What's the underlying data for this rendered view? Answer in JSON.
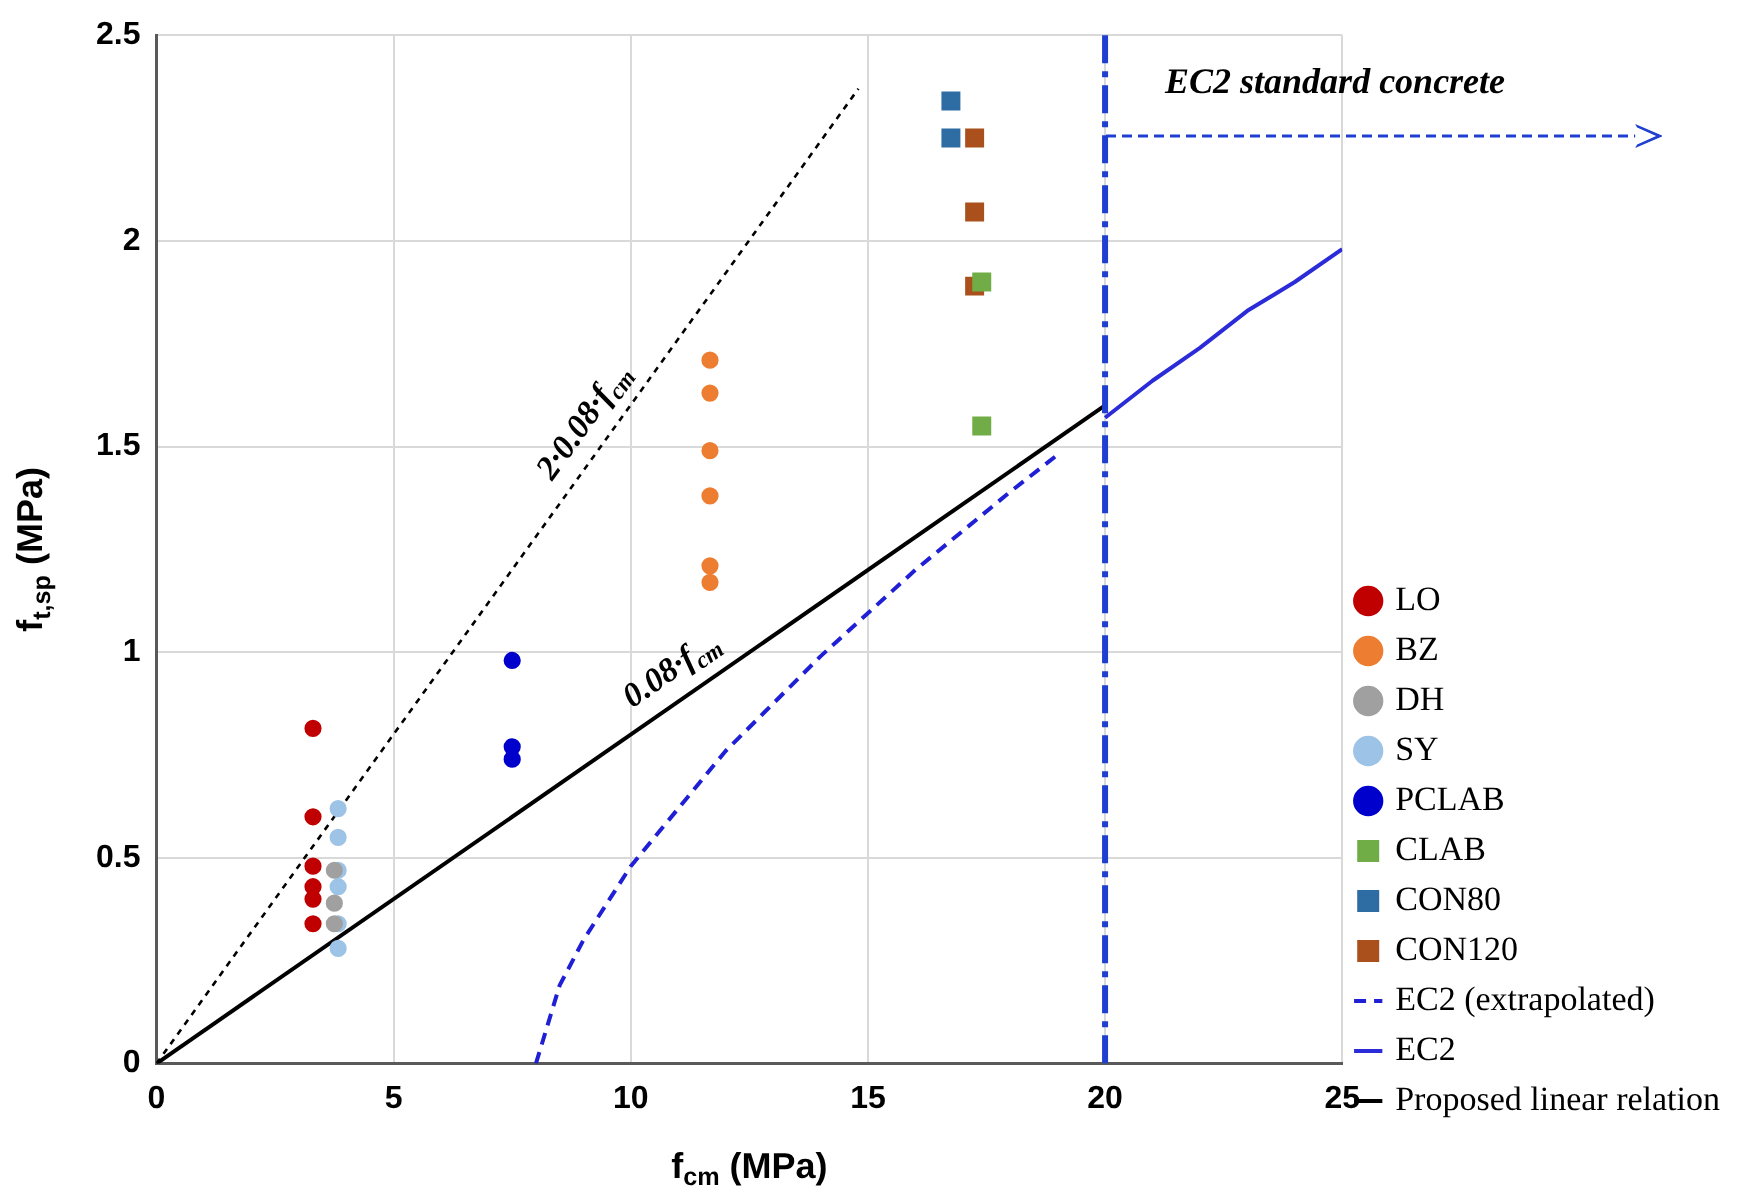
{
  "chart_data": {
    "type": "scatter",
    "xlabel": "f$_{cm}$ (MPa)",
    "ylabel": "f$_{t,sp}$ (MPa)",
    "xlim": [
      0,
      25
    ],
    "xticks": [
      0,
      5,
      10,
      15,
      20,
      25
    ],
    "ylim": [
      0,
      2.5
    ],
    "yticks": [
      0,
      0.5,
      1,
      1.5,
      2,
      2.5
    ],
    "grid": true,
    "legend": "right",
    "series": [
      {
        "name": "LO",
        "color": "#c00000",
        "marker": "circle",
        "x": [
          3.3,
          3.3,
          3.3,
          3.3,
          3.3,
          3.3
        ],
        "values": [
          0.815,
          0.6,
          0.48,
          0.43,
          0.4,
          0.34
        ]
      },
      {
        "name": "BZ",
        "color": "#ed7d31",
        "marker": "circle",
        "x": [
          11.67,
          11.67,
          11.67,
          11.67,
          11.67,
          11.67
        ],
        "values": [
          1.71,
          1.63,
          1.49,
          1.38,
          1.21,
          1.17
        ]
      },
      {
        "name": "DH",
        "color": "#a0a0a0",
        "marker": "circle",
        "x": [
          3.75,
          3.75,
          3.75
        ],
        "values": [
          0.47,
          0.39,
          0.34
        ]
      },
      {
        "name": "SY",
        "color": "#9dc3e6",
        "marker": "circle",
        "x": [
          3.83,
          3.83,
          3.83,
          3.83,
          3.83,
          3.83
        ],
        "values": [
          0.62,
          0.55,
          0.47,
          0.43,
          0.34,
          0.28
        ]
      },
      {
        "name": "PCLAB",
        "color": "#0000cc",
        "marker": "circle",
        "x": [
          7.5,
          7.5,
          7.5
        ],
        "values": [
          0.98,
          0.77,
          0.74
        ]
      },
      {
        "name": "CLAB",
        "color": "#70ad47",
        "marker": "square",
        "x": [
          17.4,
          17.4
        ],
        "values": [
          1.9,
          1.55
        ]
      },
      {
        "name": "CON80",
        "color": "#2e6ca4",
        "marker": "square",
        "x": [
          16.75,
          16.75
        ],
        "values": [
          2.34,
          2.25
        ]
      },
      {
        "name": "CON120",
        "color": "#a9501c",
        "marker": "square",
        "x": [
          17.25,
          17.25,
          17.25
        ],
        "values": [
          2.25,
          2.07,
          1.89
        ]
      },
      {
        "name": "EC2 (extrapolated)",
        "type": "line",
        "color": "#1f1fd6",
        "marker": "none",
        "line_style": "dashed",
        "x": [
          8,
          8.5,
          9,
          10,
          11,
          12,
          14,
          16,
          18,
          19
        ],
        "values": [
          0,
          0.19,
          0.3,
          0.48,
          0.62,
          0.76,
          0.99,
          1.2,
          1.39,
          1.48
        ]
      },
      {
        "name": "EC2",
        "type": "line",
        "color": "#2b2bd8",
        "marker": "none",
        "line_style": "solid",
        "x": [
          20,
          21,
          22,
          23,
          24,
          25
        ],
        "values": [
          1.57,
          1.66,
          1.74,
          1.83,
          1.9,
          1.98
        ]
      },
      {
        "name": "Proposed linear relation",
        "type": "line",
        "color": "#000000",
        "marker": "none",
        "line_style": "solid",
        "x": [
          0,
          20
        ],
        "values": [
          0,
          1.6
        ]
      },
      {
        "type": "line",
        "color": "#000000",
        "marker": "none",
        "line_style": "dotted",
        "x": [
          0,
          14.8
        ],
        "values": [
          0,
          2.37
        ]
      }
    ],
    "ref_lines": [
      {
        "axis": "x",
        "value": 20,
        "color": "#1f3fd0",
        "line_style": "dashed"
      }
    ],
    "annotations": [
      {
        "text": "2·0.08·f$_{cm}$",
        "x": 9.5,
        "y": 1.52
      },
      {
        "text": "0.08·f$_{cm}$",
        "x": 11.2,
        "y": 0.9
      },
      "EC2 standard concrete"
    ]
  }
}
